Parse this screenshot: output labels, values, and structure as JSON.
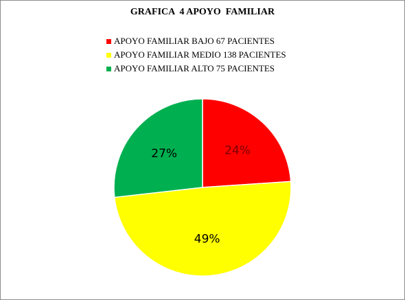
{
  "chart_data": {
    "type": "pie",
    "title": "GRAFICA  4 APOYO  FAMILIAR",
    "legend_position": "top",
    "slices": [
      {
        "name": "APOYO FAMILIAR BAJO 67 PACIENTES",
        "value": 67,
        "percent_label": "24%",
        "color": "#FF0000"
      },
      {
        "name": "APOYO FAMILIAR MEDIO 138 PACIENTES",
        "value": 138,
        "percent_label": "49%",
        "color": "#FFFF00"
      },
      {
        "name": "APOYO FAMILIAR ALTO 75 PACIENTES",
        "value": 75,
        "percent_label": "27%",
        "color": "#00B050"
      }
    ]
  }
}
